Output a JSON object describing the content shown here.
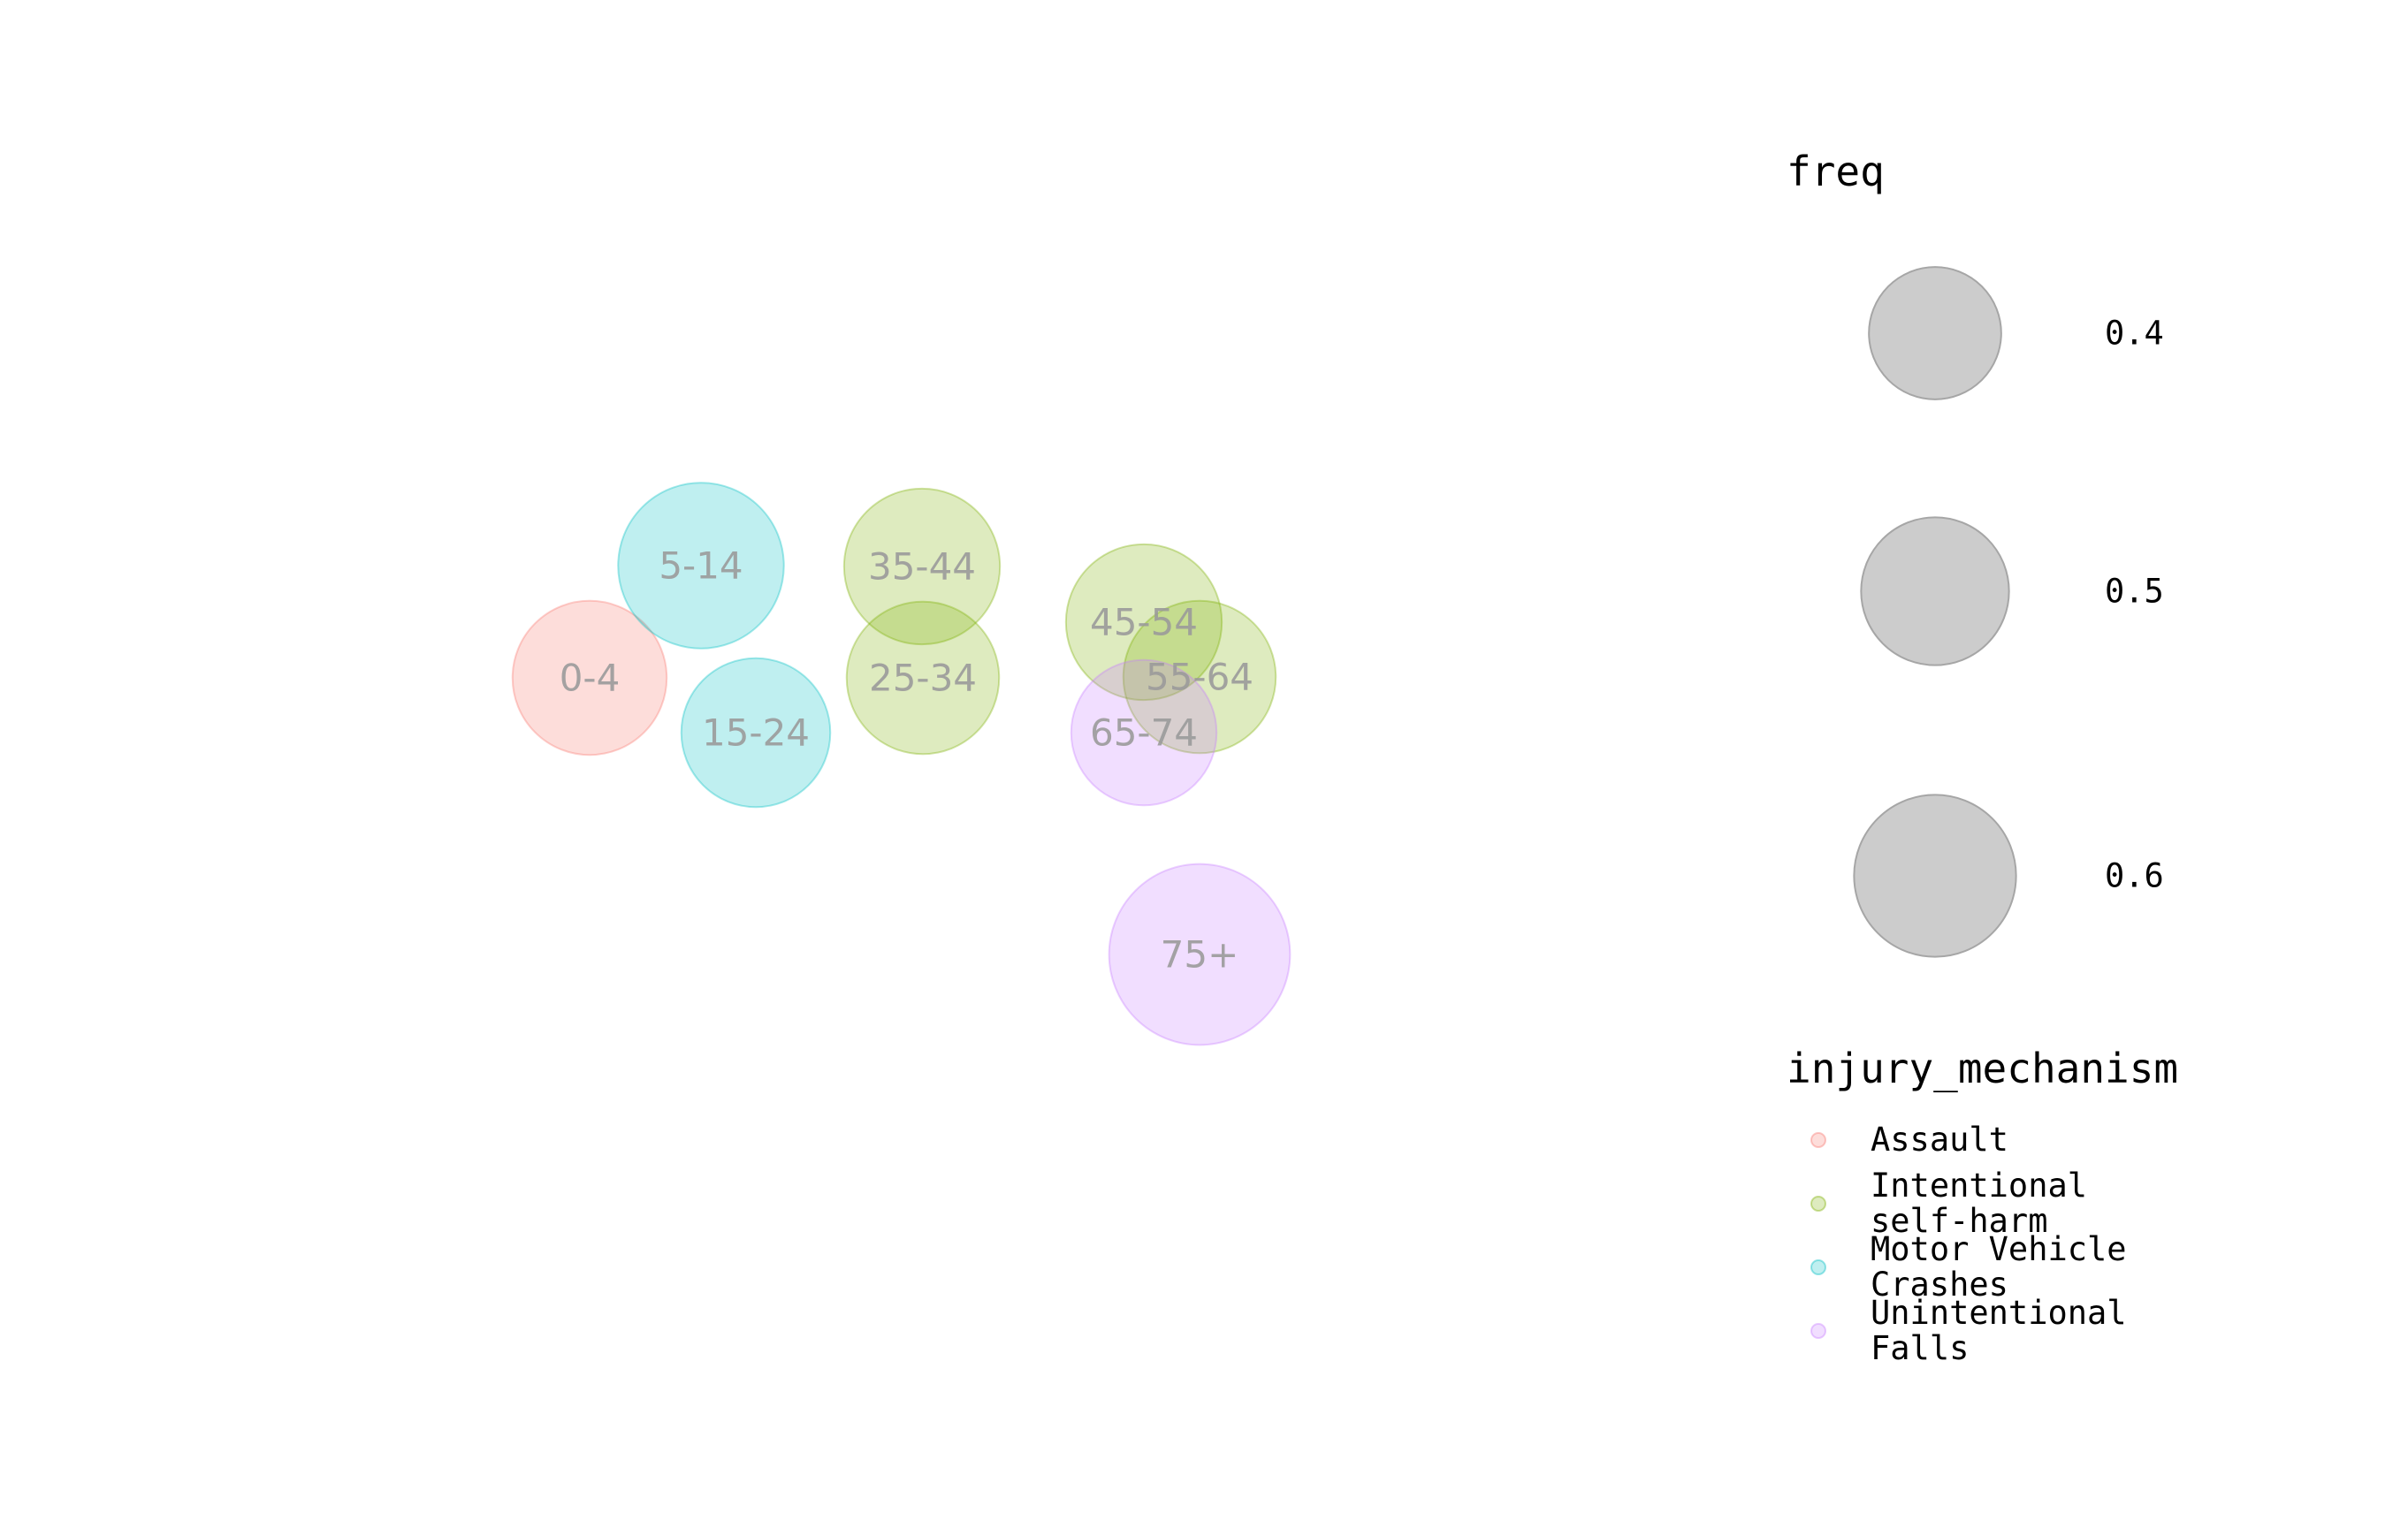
{
  "chart_data": {
    "type": "bubble",
    "title": "",
    "xlabel": "",
    "ylabel": "",
    "grid": false,
    "axes_visible": false,
    "colors": {
      "Assault": "#F8766D",
      "Intentional self-harm": "#7CAE00",
      "Motor Vehicle Crashes": "#00BFC4",
      "Unintentional Falls": "#C77CFF"
    },
    "bubbles": [
      {
        "label": "0-4",
        "injury_mechanism": "Assault",
        "freq": 0.45
      },
      {
        "label": "5-14",
        "injury_mechanism": "Motor Vehicle Crashes",
        "freq": 0.52
      },
      {
        "label": "15-24",
        "injury_mechanism": "Motor Vehicle Crashes",
        "freq": 0.42
      },
      {
        "label": "25-34",
        "injury_mechanism": "Intentional self-harm",
        "freq": 0.44
      },
      {
        "label": "35-44",
        "injury_mechanism": "Intentional self-harm",
        "freq": 0.46
      },
      {
        "label": "45-54",
        "injury_mechanism": "Intentional self-harm",
        "freq": 0.46
      },
      {
        "label": "55-64",
        "injury_mechanism": "Intentional self-harm",
        "freq": 0.44
      },
      {
        "label": "65-74",
        "injury_mechanism": "Unintentional Falls",
        "freq": 0.4
      },
      {
        "label": "75+",
        "injury_mechanism": "Unintentional Falls",
        "freq": 0.62
      }
    ],
    "legend": {
      "placement": "right",
      "size_title": "freq",
      "size_entries": [
        {
          "label": "0.4",
          "value": 0.4
        },
        {
          "label": "0.5",
          "value": 0.5
        },
        {
          "label": "0.6",
          "value": 0.6
        }
      ],
      "color_title": "injury_mechanism",
      "color_entries": [
        {
          "key": "Assault",
          "lines": [
            "Assault"
          ]
        },
        {
          "key": "Intentional self-harm",
          "lines": [
            "Intentional",
            "self-harm"
          ]
        },
        {
          "key": "Motor Vehicle Crashes",
          "lines": [
            "Motor Vehicle",
            "Crashes"
          ]
        },
        {
          "key": "Unintentional Falls",
          "lines": [
            "Unintentional",
            "Falls"
          ]
        }
      ]
    }
  }
}
